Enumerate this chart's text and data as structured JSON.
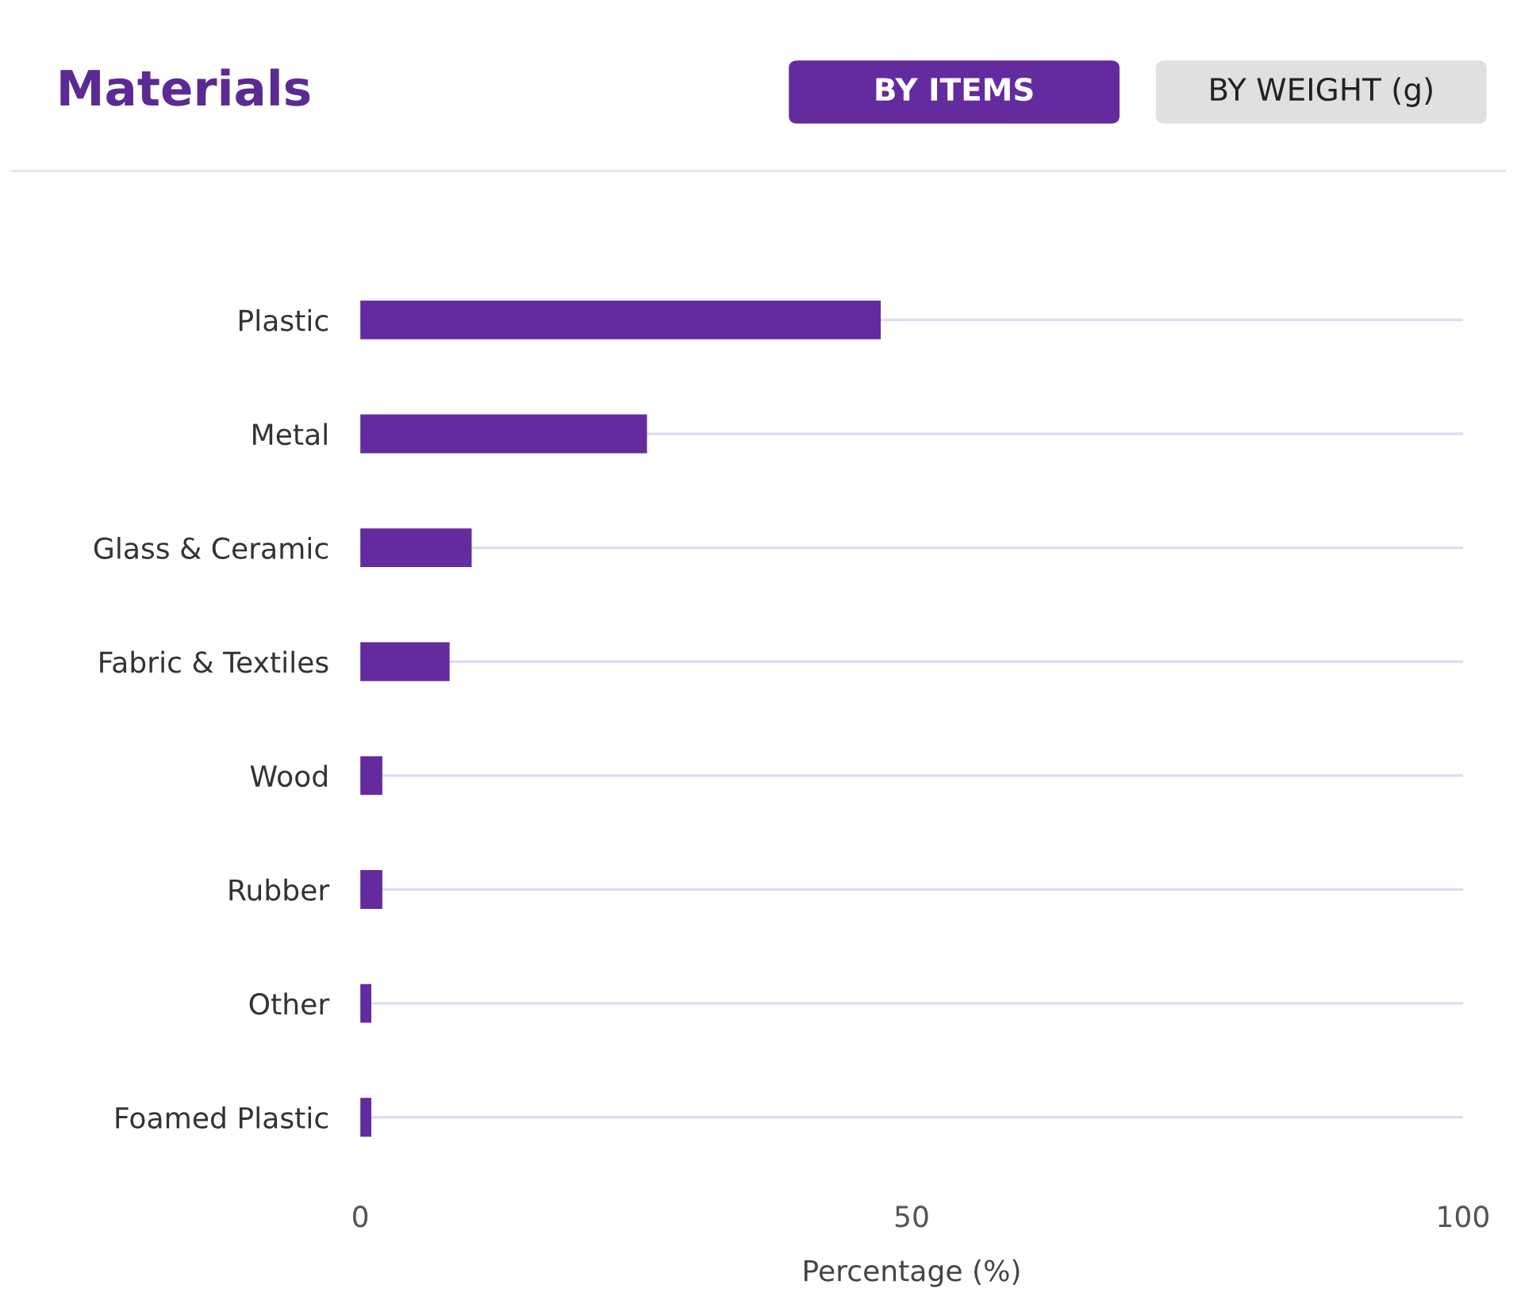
{
  "chart_data": {
    "type": "bar",
    "orientation": "horizontal",
    "title": "Materials",
    "annotations": [
      "BY ITEMS",
      "BY WEIGHT (g)"
    ],
    "categories": [
      "Plastic",
      "Metal",
      "Glass & Ceramic",
      "Fabric & Textiles",
      "Wood",
      "Rubber",
      "Other",
      "Foamed Plastic"
    ],
    "values": [
      47.2,
      26.0,
      10.1,
      8.1,
      2.0,
      2.0,
      1.0,
      1.0
    ],
    "color": "#642b9e",
    "xlabel": "Percentage (%)",
    "xlim": [
      0,
      100
    ],
    "xticks": [
      0,
      50,
      100
    ],
    "grid": "y",
    "legend": false
  }
}
